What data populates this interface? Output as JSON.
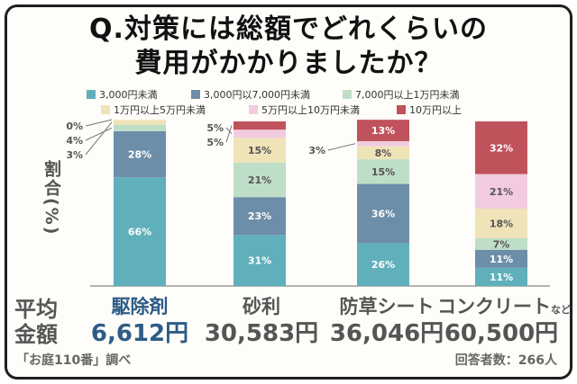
{
  "title_line1": "Q.対策には総額でどれくらいの",
  "title_line2": "費用がかかりましたか？",
  "ylabel": "割合(%)",
  "row_label_top": "平均",
  "row_label_bottom": "金額",
  "source": "「お庭110番」調べ",
  "respondents": "回答者数：266人",
  "amounts": [
    "6,612円",
    "30,583円",
    "36,046円",
    "60,500円"
  ],
  "category_suffix": "など",
  "colors": {
    "c1": "#5fb0bb",
    "c2": "#6d8ea8",
    "c3": "#bfdec8",
    "c4": "#efe3b8",
    "c5": "#f2cbe0",
    "c6": "#c0525c"
  },
  "chart_data": {
    "type": "bar",
    "stacked": true,
    "categories": [
      "駆除剤",
      "砂利",
      "防草シート",
      "コンクリート"
    ],
    "series": [
      {
        "name": "3,000円未満",
        "values": [
          66,
          31,
          26,
          11
        ]
      },
      {
        "name": "3,000円以7,000円未満",
        "values": [
          28,
          23,
          36,
          11
        ]
      },
      {
        "name": "7,000円以上1万円未満",
        "values": [
          4,
          21,
          15,
          7
        ]
      },
      {
        "name": "1万円以上5万円未満",
        "values": [
          3,
          15,
          8,
          18
        ]
      },
      {
        "name": "5万円以上10万円未満",
        "values": [
          0,
          5,
          3,
          21
        ]
      },
      {
        "name": "10万円以上",
        "values": [
          0,
          5,
          13,
          32
        ]
      }
    ],
    "data_labels": [
      [
        "66%",
        "28%",
        "4%",
        "3%",
        "0%",
        null
      ],
      [
        "31%",
        "23%",
        "21%",
        "15%",
        "5%",
        "5%"
      ],
      [
        "26%",
        "36%",
        "15%",
        "8%",
        "3%",
        "13%"
      ],
      [
        "11%",
        "11%",
        "7%",
        "18%",
        "21%",
        "32%"
      ]
    ],
    "ylabel": "割合(%)",
    "ylim": [
      0,
      100
    ],
    "grid": false,
    "legend_position": "top"
  }
}
